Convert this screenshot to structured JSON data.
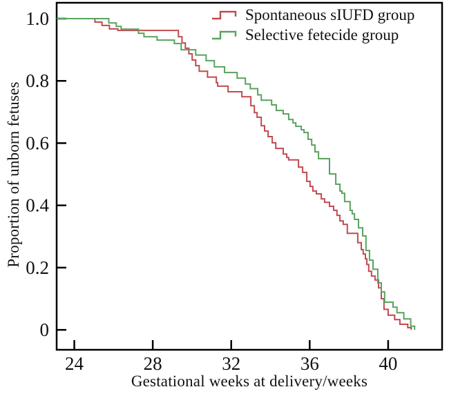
{
  "figure": {
    "background": "#ffffff",
    "axis_color": "#000000",
    "text_color": "#111111"
  },
  "legend": {
    "position": "upper-right-inside",
    "items": [
      {
        "label": "Spontaneous sIUFD group",
        "color": "#c2494f",
        "marker": "step-line"
      },
      {
        "label": "Selective fetecide group",
        "color": "#58a25e",
        "marker": "step-line"
      }
    ]
  },
  "chart_data": {
    "type": "line",
    "subtype": "kaplan-meier-step-survival",
    "title": "",
    "xlabel": "Gestational weeks at delivery/weeks",
    "ylabel": "Proportion of unborn fetuses",
    "xlim": [
      23.1,
      42.75
    ],
    "ylim": [
      -0.064,
      1.051
    ],
    "xticks": [
      24,
      28,
      32,
      36,
      40
    ],
    "xtick_labels": [
      "24",
      "28",
      "32",
      "36",
      "40"
    ],
    "yticks": [
      1.0,
      0.8,
      0.6,
      0.4,
      0.2,
      0
    ],
    "ytick_labels": [
      "1.0",
      "0.8",
      "0.6",
      "0.4",
      "0.2",
      "0"
    ],
    "grid": false,
    "box_spines": true,
    "tick_direction": "in",
    "line_width": 2,
    "series": [
      {
        "name": "Spontaneous sIUFD group",
        "color": "#c2494f",
        "points": [
          [
            23.1,
            1.0
          ],
          [
            25.05,
            0.989
          ],
          [
            25.41,
            0.978
          ],
          [
            25.79,
            0.967
          ],
          [
            26.22,
            0.962
          ],
          [
            29.31,
            0.942
          ],
          [
            29.49,
            0.922
          ],
          [
            29.66,
            0.905
          ],
          [
            29.84,
            0.887
          ],
          [
            30.01,
            0.867
          ],
          [
            30.19,
            0.849
          ],
          [
            30.37,
            0.831
          ],
          [
            30.79,
            0.812
          ],
          [
            31.24,
            0.794
          ],
          [
            31.31,
            0.783
          ],
          [
            31.84,
            0.765
          ],
          [
            32.54,
            0.749
          ],
          [
            33.0,
            0.72
          ],
          [
            33.18,
            0.698
          ],
          [
            33.32,
            0.683
          ],
          [
            33.53,
            0.656
          ],
          [
            33.7,
            0.639
          ],
          [
            33.88,
            0.621
          ],
          [
            34.09,
            0.601
          ],
          [
            34.27,
            0.583
          ],
          [
            34.65,
            0.565
          ],
          [
            34.83,
            0.554
          ],
          [
            34.93,
            0.546
          ],
          [
            35.43,
            0.523
          ],
          [
            35.64,
            0.506
          ],
          [
            35.85,
            0.477
          ],
          [
            36.02,
            0.461
          ],
          [
            36.16,
            0.446
          ],
          [
            36.34,
            0.437
          ],
          [
            36.59,
            0.421
          ],
          [
            36.76,
            0.41
          ],
          [
            37.01,
            0.397
          ],
          [
            37.22,
            0.384
          ],
          [
            37.39,
            0.368
          ],
          [
            37.54,
            0.35
          ],
          [
            37.71,
            0.339
          ],
          [
            37.92,
            0.31
          ],
          [
            38.45,
            0.28
          ],
          [
            38.63,
            0.258
          ],
          [
            38.73,
            0.244
          ],
          [
            38.84,
            0.228
          ],
          [
            38.91,
            0.21
          ],
          [
            39.01,
            0.188
          ],
          [
            39.15,
            0.173
          ],
          [
            39.33,
            0.16
          ],
          [
            39.51,
            0.135
          ],
          [
            39.65,
            0.1
          ],
          [
            39.79,
            0.066
          ],
          [
            40.0,
            0.047
          ],
          [
            40.33,
            0.033
          ],
          [
            40.6,
            0.018
          ],
          [
            41.0,
            0.007
          ],
          [
            41.18,
            0.0
          ]
        ]
      },
      {
        "name": "Selective fetecide group",
        "color": "#58a25e",
        "points": [
          [
            23.1,
            1.0
          ],
          [
            25.76,
            0.986
          ],
          [
            26.14,
            0.975
          ],
          [
            26.39,
            0.966
          ],
          [
            27.27,
            0.953
          ],
          [
            27.55,
            0.942
          ],
          [
            28.22,
            0.931
          ],
          [
            29.1,
            0.92
          ],
          [
            29.45,
            0.9
          ],
          [
            30.19,
            0.883
          ],
          [
            30.72,
            0.865
          ],
          [
            31.14,
            0.845
          ],
          [
            31.66,
            0.827
          ],
          [
            32.3,
            0.809
          ],
          [
            32.72,
            0.79
          ],
          [
            32.97,
            0.775
          ],
          [
            33.35,
            0.755
          ],
          [
            33.53,
            0.738
          ],
          [
            34.06,
            0.723
          ],
          [
            34.3,
            0.705
          ],
          [
            34.65,
            0.694
          ],
          [
            34.93,
            0.676
          ],
          [
            35.15,
            0.665
          ],
          [
            35.29,
            0.654
          ],
          [
            35.57,
            0.643
          ],
          [
            35.71,
            0.634
          ],
          [
            35.92,
            0.612
          ],
          [
            36.1,
            0.594
          ],
          [
            36.27,
            0.572
          ],
          [
            36.45,
            0.55
          ],
          [
            37.01,
            0.501
          ],
          [
            37.33,
            0.468
          ],
          [
            37.54,
            0.446
          ],
          [
            37.64,
            0.439
          ],
          [
            37.78,
            0.412
          ],
          [
            38.06,
            0.384
          ],
          [
            38.17,
            0.373
          ],
          [
            38.28,
            0.355
          ],
          [
            38.49,
            0.328
          ],
          [
            38.7,
            0.302
          ],
          [
            38.87,
            0.255
          ],
          [
            39.05,
            0.224
          ],
          [
            39.23,
            0.195
          ],
          [
            39.47,
            0.151
          ],
          [
            39.65,
            0.122
          ],
          [
            39.82,
            0.089
          ],
          [
            40.25,
            0.073
          ],
          [
            40.45,
            0.055
          ],
          [
            40.8,
            0.035
          ],
          [
            41.15,
            0.012
          ],
          [
            41.35,
            0.0
          ]
        ]
      }
    ]
  }
}
